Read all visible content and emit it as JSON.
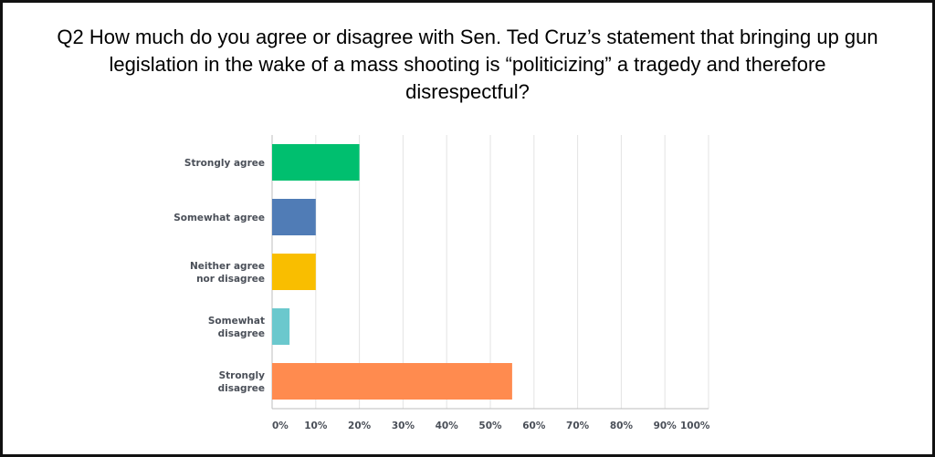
{
  "chart_data": {
    "type": "bar",
    "orientation": "horizontal",
    "title_lines": [
      "Q2 How much do you agree or disagree with Sen. Ted Cruz’s statement that bringing up gun",
      "legislation in the wake of a mass shooting is “politicizing” a tragedy and therefore",
      "disrespectful?"
    ],
    "categories": [
      {
        "label_lines": [
          "Strongly agree"
        ],
        "value": 20,
        "color": "#00bf6f"
      },
      {
        "label_lines": [
          "Somewhat agree"
        ],
        "value": 10,
        "color": "#507cb6"
      },
      {
        "label_lines": [
          "Neither agree",
          "nor disagree"
        ],
        "value": 10,
        "color": "#f9be00"
      },
      {
        "label_lines": [
          "Somewhat",
          "disagree"
        ],
        "value": 4,
        "color": "#6bc8cd"
      },
      {
        "label_lines": [
          "Strongly",
          "disagree"
        ],
        "value": 55,
        "color": "#ff8b4f"
      }
    ],
    "x_ticks": [
      "0%",
      "10%",
      "20%",
      "30%",
      "40%",
      "50%",
      "60%",
      "70%",
      "80%",
      "90%",
      "100%"
    ],
    "xlim": [
      0,
      100
    ],
    "grid": true,
    "gridline_color": "#e3e3e3",
    "axis_color": "#bdbdbd"
  }
}
